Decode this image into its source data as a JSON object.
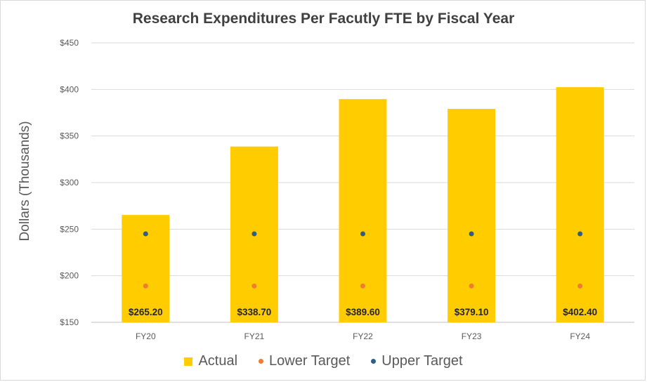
{
  "colors": {
    "actual": "#FFCC00",
    "lower_target": "#ED7D31",
    "upper_target": "#2E5E83",
    "gridline": "#d9d9d9",
    "axis": "#bfbfbf"
  },
  "chart_data": {
    "type": "bar",
    "title": "Research Expenditures Per Facutly FTE by Fiscal Year",
    "xlabel": "",
    "ylabel": "Dollars (Thousands)",
    "ylim": [
      150,
      450
    ],
    "yticks": [
      150,
      200,
      250,
      300,
      350,
      400,
      450
    ],
    "ytick_labels": [
      "$150",
      "$200",
      "$250",
      "$300",
      "$350",
      "$400",
      "$450"
    ],
    "grid": true,
    "legend_position": "bottom",
    "categories": [
      "FY20",
      "FY21",
      "FY22",
      "FY23",
      "FY24"
    ],
    "series": [
      {
        "name": "Actual",
        "kind": "bar",
        "values": [
          265.2,
          338.7,
          389.6,
          379.1,
          402.4
        ],
        "labels": [
          "$265.20",
          "$338.70",
          "$389.60",
          "$379.10",
          "$402.40"
        ]
      },
      {
        "name": "Lower Target",
        "kind": "marker",
        "values": [
          189,
          189,
          189,
          189,
          189
        ]
      },
      {
        "name": "Upper Target",
        "kind": "marker",
        "values": [
          245,
          245,
          245,
          245,
          245
        ]
      }
    ]
  }
}
